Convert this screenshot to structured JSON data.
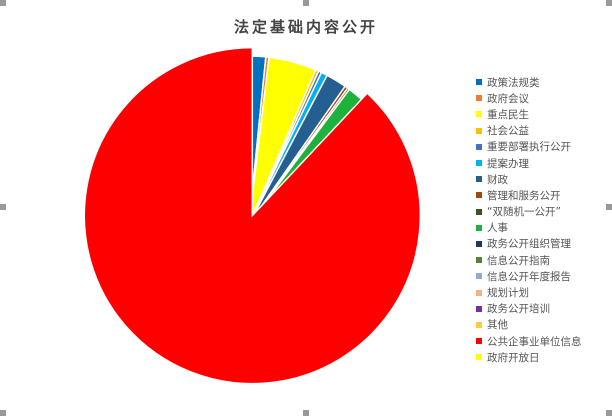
{
  "chart_data": {
    "type": "pie",
    "title": "法定基础内容公开",
    "legend_position": "right",
    "slices": [
      {
        "label": "政策法规类",
        "value": 1.6,
        "color": "#0070C0"
      },
      {
        "label": "政府会议",
        "value": 0.3,
        "color": "#ED7D31"
      },
      {
        "label": "重点民生",
        "value": 4.6,
        "color": "#FFFF00"
      },
      {
        "label": "社会公益",
        "value": 0.3,
        "color": "#FFC000"
      },
      {
        "label": "重要部署执行公开",
        "value": 0.3,
        "color": "#4472C4"
      },
      {
        "label": "提案办理",
        "value": 0.6,
        "color": "#00B0F0"
      },
      {
        "label": "财政",
        "value": 2.0,
        "color": "#255E91"
      },
      {
        "label": "管理和服务公开",
        "value": 0.3,
        "color": "#9E480E"
      },
      {
        "label": "“双随机一公开”",
        "value": 0.2,
        "color": "#375623"
      },
      {
        "label": "人事",
        "value": 1.5,
        "color": "#1DB33B"
      },
      {
        "label": "政务公开组织管理",
        "value": 0.05,
        "color": "#203864"
      },
      {
        "label": "信息公开指南",
        "value": 0.05,
        "color": "#548235"
      },
      {
        "label": "信息公开年度报告",
        "value": 0.05,
        "color": "#8FAADC"
      },
      {
        "label": "规划计划",
        "value": 0.05,
        "color": "#F4B183"
      },
      {
        "label": "政务公开培训",
        "value": 0.05,
        "color": "#7030A0"
      },
      {
        "label": "其他",
        "value": 0.05,
        "color": "#FFC93C"
      },
      {
        "label": "公共企事业单位信息",
        "value": 88.0,
        "color": "#FF0000"
      },
      {
        "label": "政府开放日",
        "value": 0.0,
        "color": "#FFFF00"
      }
    ]
  }
}
